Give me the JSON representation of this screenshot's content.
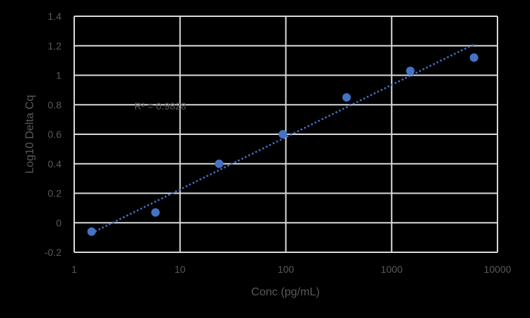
{
  "chart_data": {
    "type": "scatter",
    "title": "",
    "xlabel": "Conc (pg/mL)",
    "ylabel": "Log10 Delta Cq",
    "xscale": "log",
    "xlim": [
      1,
      10000
    ],
    "ylim": [
      -0.2,
      1.4
    ],
    "x_ticks": [
      "1",
      "10",
      "100",
      "1000",
      "10000"
    ],
    "y_ticks": [
      "-0.2",
      "0",
      "0.2",
      "0.4",
      "0.6",
      "0.8",
      "1",
      "1.2",
      "1.4"
    ],
    "grid": true,
    "legend": "none",
    "series": [
      {
        "name": "Log10 Delta Cq",
        "color": "#4472C4",
        "x": [
          1.46,
          5.86,
          23.4,
          93.75,
          375,
          1500,
          6000
        ],
        "y": [
          -0.06,
          0.07,
          0.4,
          0.6,
          0.85,
          1.03,
          1.12
        ]
      }
    ],
    "trendline": {
      "type": "logarithmic",
      "style": "dotted",
      "color": "#4472C4",
      "x_range": [
        1.46,
        6000
      ],
      "y_range": [
        -0.07,
        1.21
      ]
    },
    "annotations": [
      {
        "text": "R² = 0.9828",
        "x": 3,
        "y": 0.78
      }
    ]
  },
  "labels": {
    "r2": "R² = 0.9828",
    "xlabel": "Conc (pg/mL)",
    "ylabel": "Log10 Delta Cq"
  }
}
